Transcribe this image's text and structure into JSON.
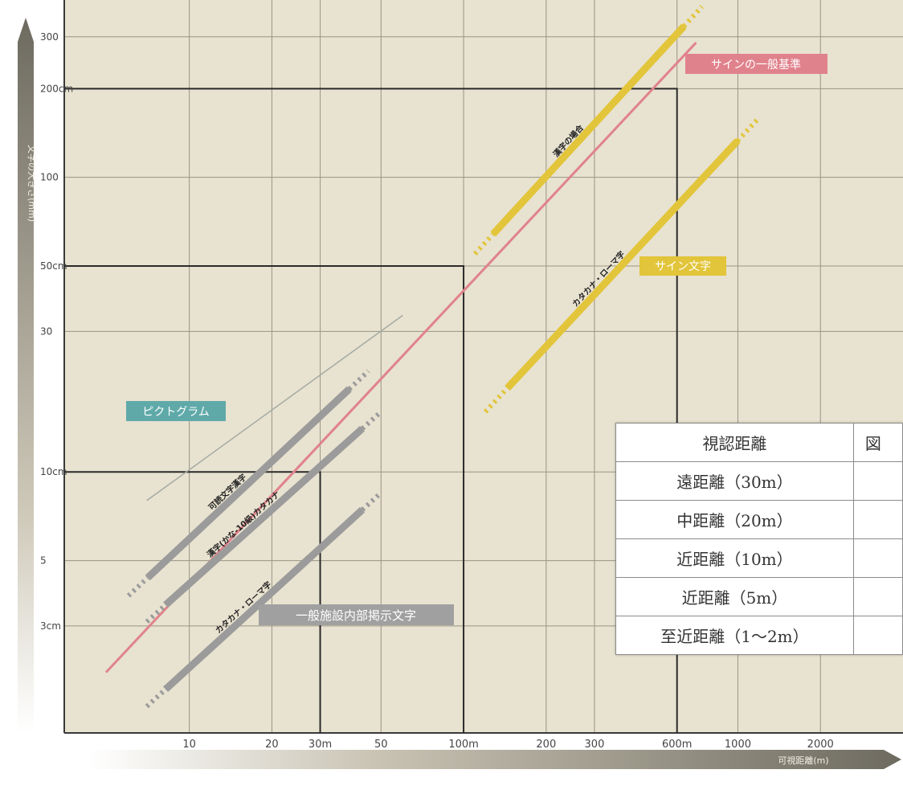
{
  "chart_data": {
    "type": "line",
    "xscale": "log",
    "yscale": "log",
    "xlim": [
      3.5,
      4000
    ],
    "ylim": [
      1.3,
      400
    ],
    "xlabel": "可視距離(m)",
    "ylabel": "文字の大きさ(mm)",
    "x_ticks": [
      {
        "value": 10,
        "label": "10"
      },
      {
        "value": 20,
        "label": "20"
      },
      {
        "value": 30,
        "label": "30m"
      },
      {
        "value": 50,
        "label": "50"
      },
      {
        "value": 100,
        "label": "100m"
      },
      {
        "value": 200,
        "label": "200"
      },
      {
        "value": 300,
        "label": "300"
      },
      {
        "value": 600,
        "label": "600m"
      },
      {
        "value": 1000,
        "label": "1000"
      },
      {
        "value": 2000,
        "label": "2000"
      }
    ],
    "y_ticks": [
      {
        "value": 300,
        "label": "300"
      },
      {
        "value": 200,
        "label": "200cm"
      },
      {
        "value": 100,
        "label": "100"
      },
      {
        "value": 50,
        "label": "50cm"
      },
      {
        "value": 30,
        "label": "30"
      },
      {
        "value": 10,
        "label": "10cm"
      },
      {
        "value": 5,
        "label": "5"
      },
      {
        "value": 3,
        "label": "3cm"
      }
    ],
    "reference_boxes": [
      {
        "x": 30,
        "y": 10
      },
      {
        "x": 100,
        "y": 50
      },
      {
        "x": 600,
        "y": 200
      }
    ],
    "series": [
      {
        "name": "サインの一般基準",
        "style": "line",
        "color": "#e0828c",
        "points": [
          [
            5,
            2.1
          ],
          [
            700,
            285
          ]
        ]
      },
      {
        "name": "漢字の場合",
        "style": "band",
        "color": "#e2c53a",
        "points": [
          [
            110,
            55
          ],
          [
            740,
            380
          ]
        ]
      },
      {
        "name": "カタカナ・ローマ字",
        "style": "band",
        "color": "#e2c53a",
        "points": [
          [
            120,
            16
          ],
          [
            1200,
            160
          ]
        ]
      },
      {
        "name": "",
        "style": "thin",
        "color": "#a5aba2",
        "points": [
          [
            7,
            8
          ],
          [
            60,
            34
          ]
        ]
      },
      {
        "name": "可読文字漢字",
        "style": "band",
        "color": "#9b9b9b",
        "points": [
          [
            6,
            3.8
          ],
          [
            45,
            22
          ]
        ]
      },
      {
        "name": "漢字(かな-10級)カタカナ",
        "style": "band",
        "color": "#9b9b9b",
        "points": [
          [
            7,
            3.1
          ],
          [
            50,
            16
          ]
        ]
      },
      {
        "name": "カタカナ・ローマ字",
        "style": "band",
        "color": "#9b9b9b",
        "points": [
          [
            7,
            1.6
          ],
          [
            50,
            8.5
          ]
        ]
      }
    ],
    "annotations": {
      "sign_standard": "サインの一般基準",
      "sign_text": "サイン文字",
      "pictogram": "ピクトグラム",
      "general_text": "一般施設内部掲示文字"
    },
    "colors": {
      "plot_background": "#e8e2d0",
      "grid": "#9a9486",
      "pink": "#e0828c",
      "yellow": "#e2c53a",
      "teal": "#5fa9a9",
      "gray": "#9b9b9b"
    }
  },
  "table": {
    "header": [
      "視認距離",
      "図"
    ],
    "rows": [
      "遠距離（30m）",
      "中距離（20m）",
      "近距離（10m）",
      "近距離（5m）",
      "至近距離（1〜2m）"
    ]
  }
}
